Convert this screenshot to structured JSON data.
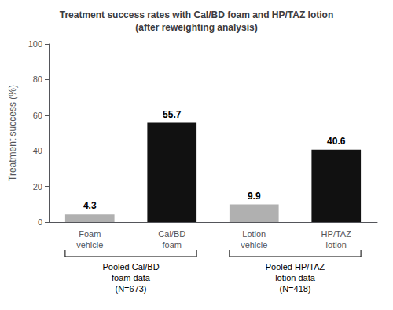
{
  "chart_data": {
    "type": "bar",
    "title": "Treatment success rates with Cal/BD foam and HP/TAZ lotion\n(after reweighting analysis)",
    "ylabel": "Treatment success (%)",
    "categories": [
      "Foam\nvehicle",
      "Cal/BD\nfoam",
      "Lotion\nvehicle",
      "HP/TAZ\nlotion"
    ],
    "values": [
      4.3,
      55.7,
      9.9,
      40.6
    ],
    "colors": [
      "#b0b0b0",
      "#111111",
      "#b0b0b0",
      "#111111"
    ],
    "ylim": [
      0,
      100
    ],
    "yticks": [
      0,
      20,
      40,
      60,
      80,
      100
    ],
    "grid": false,
    "data_labels": true,
    "annotations": [
      {
        "text": "Pooled Cal/BD\nfoam data\n(N=673)",
        "categories": [
          "Foam\nvehicle",
          "Cal/BD\nfoam"
        ]
      },
      {
        "text": "Pooled HP/TAZ\nlotion data\n(N=418)",
        "categories": [
          "Lotion\nvehicle",
          "HP/TAZ\nlotion"
        ]
      }
    ]
  }
}
